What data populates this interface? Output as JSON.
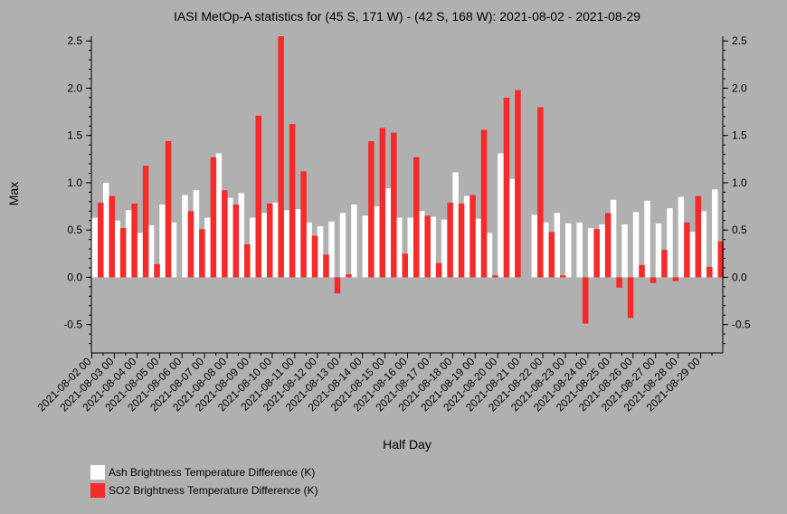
{
  "chart_data": {
    "type": "bar",
    "title": "IASI MetOp-A statistics for (45 S, 171 W) - (42 S, 168 W): 2021-08-02 - 2021-08-29",
    "xlabel": "Half Day",
    "ylabel": "Max",
    "ylim": [
      -0.8,
      2.55
    ],
    "yticks": [
      -0.5,
      0.0,
      0.5,
      1.0,
      1.5,
      2.0,
      2.5
    ],
    "ytick_labels": [
      "-0.5",
      "0.0",
      "0.5",
      "1.0",
      "1.5",
      "2.0",
      "2.5"
    ],
    "xtick_labels": [
      "2021-08-02 00",
      "2021-08-03 00",
      "2021-08-04 00",
      "2021-08-05 00",
      "2021-08-06 00",
      "2021-08-07 00",
      "2021-08-08 00",
      "2021-08-09 00",
      "2021-08-10 00",
      "2021-08-11 00",
      "2021-08-12 00",
      "2021-08-13 00",
      "2021-08-14 00",
      "2021-08-15 00",
      "2021-08-16 00",
      "2021-08-17 00",
      "2021-08-18 00",
      "2021-08-19 00",
      "2021-08-20 00",
      "2021-08-21 00",
      "2021-08-22 00",
      "2021-08-23 00",
      "2021-08-24 00",
      "2021-08-25 00",
      "2021-08-26 00",
      "2021-08-27 00",
      "2021-08-28 00",
      "2021-08-29 00"
    ],
    "series": [
      {
        "name": "Ash Brightness Temperature Difference (K)",
        "color": "#ffffff",
        "values": [
          0.63,
          1.0,
          0.6,
          0.71,
          0.47,
          0.55,
          0.77,
          0.58,
          0.87,
          0.92,
          0.63,
          1.31,
          0.84,
          0.89,
          0.63,
          0.68,
          0.79,
          0.71,
          0.72,
          0.58,
          0.54,
          0.59,
          0.68,
          0.77,
          0.65,
          0.75,
          0.94,
          0.63,
          0.63,
          0.7,
          0.64,
          0.61,
          1.11,
          0.86,
          0.62,
          0.47,
          1.31,
          1.04,
          null,
          0.66,
          0.58,
          0.68,
          0.57,
          0.58,
          0.52,
          0.56,
          0.82,
          0.56,
          0.69,
          0.81,
          0.57,
          0.73,
          0.85,
          0.48,
          0.7,
          0.93
        ]
      },
      {
        "name": "SO2 Brightness Temperature Difference (K)",
        "color": "#f52a2a",
        "values": [
          0.79,
          0.86,
          0.52,
          0.78,
          1.18,
          0.14,
          1.44,
          0.0,
          0.7,
          0.51,
          1.27,
          0.92,
          0.77,
          0.35,
          1.71,
          0.78,
          2.55,
          1.62,
          1.12,
          0.44,
          0.24,
          -0.17,
          0.03,
          0.0,
          1.44,
          1.58,
          1.53,
          0.25,
          1.27,
          0.65,
          0.15,
          0.79,
          0.78,
          0.87,
          1.56,
          0.02,
          1.9,
          1.98,
          null,
          1.8,
          0.48,
          0.02,
          0.0,
          -0.49,
          0.51,
          0.68,
          -0.11,
          -0.43,
          0.13,
          -0.06,
          0.29,
          -0.04,
          0.58,
          0.86,
          0.11,
          0.38
        ]
      }
    ],
    "legend_position": "bottom-left",
    "grid": false
  }
}
